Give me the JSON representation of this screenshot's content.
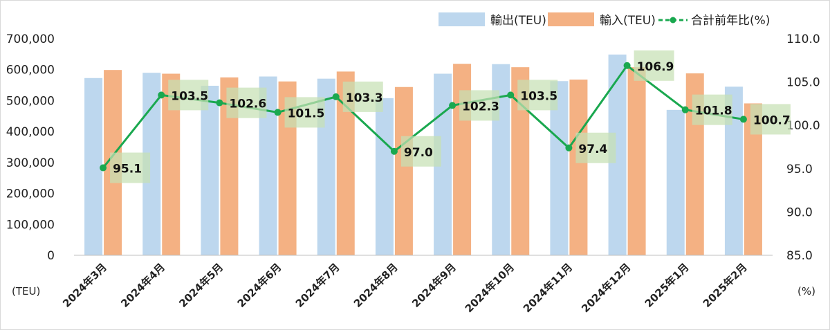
{
  "chart_data": {
    "type": "bar",
    "categories": [
      "2024年3月",
      "2024年4月",
      "2024年5月",
      "2024年6月",
      "2024年7月",
      "2024年8月",
      "2024年9月",
      "2024年10月",
      "2024年11月",
      "2024年12月",
      "2025年1月",
      "2025年2月"
    ],
    "series": [
      {
        "name": "輸出(TEU)",
        "type": "bar",
        "axis": "left",
        "color": "#bdd7ee",
        "values": [
          573000,
          590000,
          548000,
          578000,
          571000,
          508000,
          587000,
          618000,
          563000,
          649000,
          470000,
          545000
        ]
      },
      {
        "name": "輸入(TEU)",
        "type": "bar",
        "axis": "left",
        "color": "#f4b183",
        "values": [
          599000,
          587000,
          575000,
          562000,
          594000,
          544000,
          619000,
          608000,
          568000,
          608000,
          588000,
          491000
        ]
      },
      {
        "name": "合計前年比(%)",
        "type": "line",
        "axis": "right",
        "color": "#1aa84f",
        "label_bg": "#c6e0b4",
        "values": [
          95.1,
          103.5,
          102.6,
          101.5,
          103.3,
          97.0,
          102.3,
          103.5,
          97.4,
          106.9,
          101.8,
          100.7
        ],
        "labels": [
          "95.1",
          "103.5",
          "102.6",
          "101.5",
          "103.3",
          "97.0",
          "102.3",
          "103.5",
          "97.4",
          "106.9",
          "101.8",
          "100.7"
        ]
      }
    ],
    "ylim_left": [
      0,
      700000
    ],
    "yticks_left": [
      "0",
      "100,000",
      "200,000",
      "300,000",
      "400,000",
      "500,000",
      "600,000",
      "700,000"
    ],
    "ylim_right": [
      85,
      110
    ],
    "yticks_right": [
      "85.0",
      "90.0",
      "95.0",
      "100.0",
      "105.0",
      "110.0"
    ],
    "ylabel_left": "(TEU)",
    "ylabel_right": "(%)",
    "legend_position": "top-right",
    "grid": false
  }
}
